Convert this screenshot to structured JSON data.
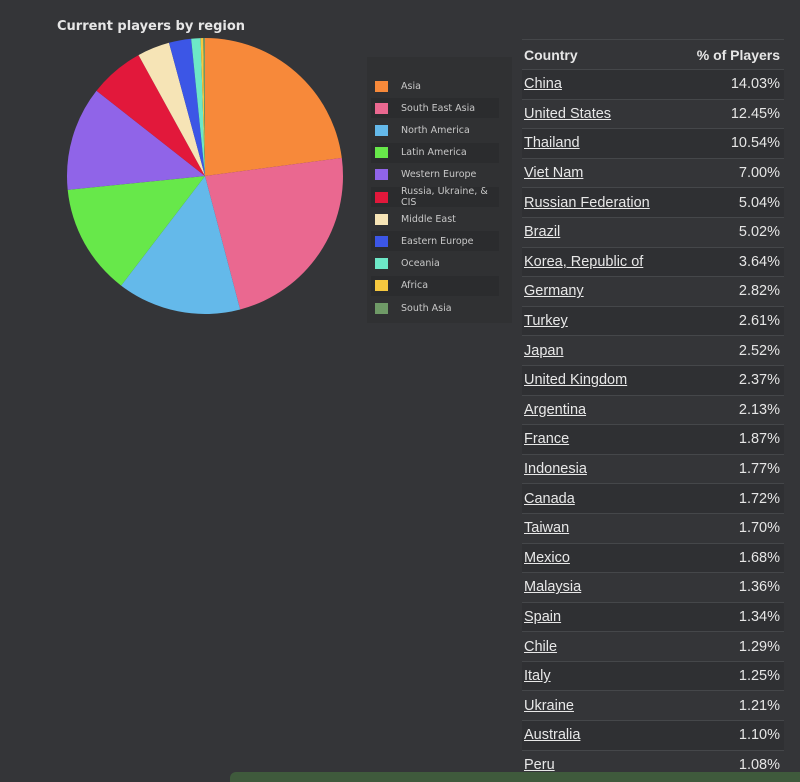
{
  "chart_data": {
    "type": "pie",
    "title": "Current players by region",
    "categories": [
      "Asia",
      "South East Asia",
      "North America",
      "Latin America",
      "Western Europe",
      "Russia, Ukraine, & CIS",
      "Middle East",
      "Eastern Europe",
      "Oceania",
      "Africa",
      "South Asia"
    ],
    "values": [
      22.9,
      23.0,
      14.5,
      13.0,
      12.2,
      6.4,
      3.8,
      2.6,
      1.1,
      0.3,
      0.2
    ],
    "colors": [
      "#f7893a",
      "#ea6890",
      "#64b9ea",
      "#67e84a",
      "#9064e8",
      "#e2183b",
      "#f6e4b6",
      "#3c56e6",
      "#6de8c7",
      "#f6c83f",
      "#6f9a67"
    ],
    "legend_position": "right"
  },
  "table": {
    "headers": {
      "country": "Country",
      "percent": "% of Players"
    },
    "rows": [
      {
        "country": "China",
        "percent": "14.03%"
      },
      {
        "country": "United States",
        "percent": "12.45%"
      },
      {
        "country": "Thailand",
        "percent": "10.54%"
      },
      {
        "country": "Viet Nam",
        "percent": "7.00%"
      },
      {
        "country": "Russian Federation",
        "percent": "5.04%"
      },
      {
        "country": "Brazil",
        "percent": "5.02%"
      },
      {
        "country": "Korea, Republic of",
        "percent": "3.64%"
      },
      {
        "country": "Germany",
        "percent": "2.82%"
      },
      {
        "country": "Turkey",
        "percent": "2.61%"
      },
      {
        "country": "Japan",
        "percent": "2.52%"
      },
      {
        "country": "United Kingdom",
        "percent": "2.37%"
      },
      {
        "country": "Argentina",
        "percent": "2.13%"
      },
      {
        "country": "France",
        "percent": "1.87%"
      },
      {
        "country": "Indonesia",
        "percent": "1.77%"
      },
      {
        "country": "Canada",
        "percent": "1.72%"
      },
      {
        "country": "Taiwan",
        "percent": "1.70%"
      },
      {
        "country": "Mexico",
        "percent": "1.68%"
      },
      {
        "country": "Malaysia",
        "percent": "1.36%"
      },
      {
        "country": "Spain",
        "percent": "1.34%"
      },
      {
        "country": "Chile",
        "percent": "1.29%"
      },
      {
        "country": "Italy",
        "percent": "1.25%"
      },
      {
        "country": "Ukraine",
        "percent": "1.21%"
      },
      {
        "country": "Australia",
        "percent": "1.10%"
      },
      {
        "country": "Peru",
        "percent": "1.08%"
      }
    ]
  }
}
